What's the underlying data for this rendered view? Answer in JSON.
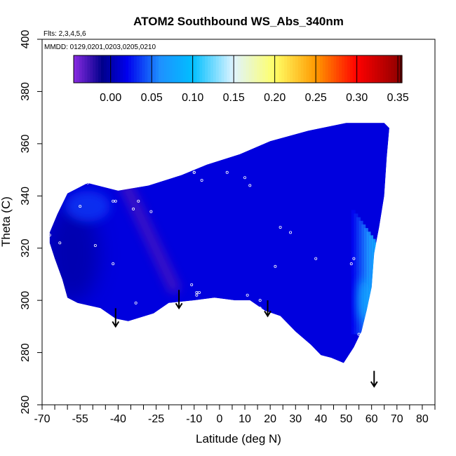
{
  "chart_data": {
    "type": "heatmap",
    "title": "ATOM2 Southbound WS_Abs_340nm",
    "notes": [
      "Flts: 2,3,4,5,6",
      "MMDD: 0129,0201,0203,0205,0210"
    ],
    "xlabel": "Latitude (deg N)",
    "ylabel": "Theta (C)",
    "xlim": [
      -70,
      85
    ],
    "ylim": [
      260,
      400
    ],
    "xtick_labels": [
      -70,
      -55,
      -40,
      -25,
      -10,
      0,
      10,
      20,
      30,
      40,
      50,
      60,
      70,
      80
    ],
    "ytick_labels": [
      260,
      280,
      300,
      320,
      340,
      360,
      380,
      400
    ],
    "colorbar": {
      "ticks": [
        0.0,
        0.05,
        0.1,
        0.15,
        0.2,
        0.25,
        0.3,
        0.35
      ],
      "tick_labels": [
        "0.00",
        "0.05",
        "0.10",
        "0.15",
        "0.20",
        "0.25",
        "0.30",
        "0.35"
      ],
      "range": [
        -0.045,
        0.355
      ],
      "stops": [
        {
          "v": -0.045,
          "c": "#8a2be2"
        },
        {
          "v": -0.01,
          "c": "#00008b"
        },
        {
          "v": 0.02,
          "c": "#0000ee"
        },
        {
          "v": 0.06,
          "c": "#1e90ff"
        },
        {
          "v": 0.1,
          "c": "#00bfff"
        },
        {
          "v": 0.15,
          "c": "#e0f4ff"
        },
        {
          "v": 0.2,
          "c": "#ffff66"
        },
        {
          "v": 0.25,
          "c": "#ff9900"
        },
        {
          "v": 0.3,
          "c": "#ff0000"
        },
        {
          "v": 0.355,
          "c": "#8b0000"
        }
      ]
    },
    "field_outline": [
      [
        -67,
        326
      ],
      [
        -67,
        322
      ],
      [
        -65,
        316
      ],
      [
        -62,
        308
      ],
      [
        -60,
        301
      ],
      [
        -56,
        299
      ],
      [
        -47,
        297
      ],
      [
        -41,
        293
      ],
      [
        -36,
        292
      ],
      [
        -26,
        295
      ],
      [
        -20,
        299
      ],
      [
        -10,
        300
      ],
      [
        -2,
        301
      ],
      [
        6,
        300
      ],
      [
        12,
        300
      ],
      [
        18,
        296
      ],
      [
        24,
        294
      ],
      [
        30,
        288
      ],
      [
        36,
        283
      ],
      [
        40,
        279
      ],
      [
        44,
        278
      ],
      [
        49,
        276
      ],
      [
        53,
        282
      ],
      [
        56,
        288
      ],
      [
        58,
        296
      ],
      [
        60,
        305
      ],
      [
        61,
        318
      ],
      [
        63,
        328
      ],
      [
        65,
        340
      ],
      [
        66,
        355
      ],
      [
        67,
        366
      ],
      [
        65,
        368
      ],
      [
        50,
        368
      ],
      [
        35,
        365
      ],
      [
        20,
        361
      ],
      [
        8,
        356
      ],
      [
        -5,
        352
      ],
      [
        -15,
        348
      ],
      [
        -28,
        344
      ],
      [
        -40,
        342
      ],
      [
        -52,
        345
      ],
      [
        -60,
        341
      ],
      [
        -64,
        333
      ]
    ],
    "field_colors": {
      "background": 0.015,
      "violet_band": {
        "from": [
          -37,
          344
        ],
        "to": [
          -18,
          305
        ],
        "value": -0.01
      },
      "west_dark": {
        "at": [
          -58,
          318
        ],
        "value": 0.0
      },
      "nw_lighter": {
        "at": [
          -52,
          336
        ],
        "value": 0.035
      },
      "east_edge": {
        "from_lat": 54,
        "to_lat": 60,
        "from_theta": 287,
        "to_theta": 336,
        "max_value": 0.1
      }
    },
    "sample_points": [
      {
        "lat": -67,
        "theta": 325
      },
      {
        "lat": -63,
        "theta": 322
      },
      {
        "lat": -55,
        "theta": 336
      },
      {
        "lat": -52,
        "theta": 345
      },
      {
        "lat": -49,
        "theta": 321
      },
      {
        "lat": -42,
        "theta": 338
      },
      {
        "lat": -41,
        "theta": 338
      },
      {
        "lat": -42,
        "theta": 314
      },
      {
        "lat": -34,
        "theta": 335
      },
      {
        "lat": -32,
        "theta": 338
      },
      {
        "lat": -27,
        "theta": 334
      },
      {
        "lat": -33,
        "theta": 299
      },
      {
        "lat": -11,
        "theta": 351
      },
      {
        "lat": -10,
        "theta": 349
      },
      {
        "lat": -10,
        "theta": 349
      },
      {
        "lat": -7,
        "theta": 346
      },
      {
        "lat": -11,
        "theta": 306
      },
      {
        "lat": -9,
        "theta": 303
      },
      {
        "lat": -9,
        "theta": 302
      },
      {
        "lat": -8,
        "theta": 303
      },
      {
        "lat": 3,
        "theta": 349
      },
      {
        "lat": 10,
        "theta": 347
      },
      {
        "lat": 12,
        "theta": 344
      },
      {
        "lat": 11,
        "theta": 302
      },
      {
        "lat": 16,
        "theta": 300
      },
      {
        "lat": 16,
        "theta": 297
      },
      {
        "lat": 22,
        "theta": 313
      },
      {
        "lat": 24,
        "theta": 328
      },
      {
        "lat": 28,
        "theta": 326
      },
      {
        "lat": 22,
        "theta": 294
      },
      {
        "lat": 38,
        "theta": 316
      },
      {
        "lat": 53,
        "theta": 316
      },
      {
        "lat": 52,
        "theta": 314
      },
      {
        "lat": 55,
        "theta": 287
      }
    ],
    "arrows": [
      {
        "lat": -41,
        "theta_top": 297,
        "theta_tip": 290
      },
      {
        "lat": -16,
        "theta_top": 304,
        "theta_tip": 297
      },
      {
        "lat": 19,
        "theta_top": 300,
        "theta_tip": 294
      },
      {
        "lat": 61,
        "theta_top": 273,
        "theta_tip": 267
      }
    ]
  }
}
